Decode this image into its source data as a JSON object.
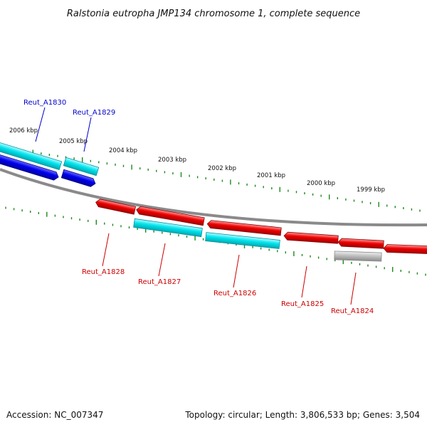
{
  "title": "Ralstonia eutropha JMP134 chromosome 1, complete sequence",
  "footer": {
    "accession": "Accession: NC_007347",
    "summary": "Topology: circular; Length: 3,806,533 bp; Genes: 3,504"
  },
  "colors": {
    "backbone": "#8a8a8a",
    "tick": "#1a8a1a",
    "label_forward": "#0000cc",
    "label_reverse": "#cc0000",
    "gene_cyan": "#00e5ee",
    "gene_blue": "#0000ee",
    "gene_red": "#ee0000",
    "gene_grey": "#b8b8b8"
  },
  "kbp_labels": [
    "2006 kbp",
    "2005 kbp",
    "2004 kbp",
    "2003 kbp",
    "2002 kbp",
    "2001 kbp",
    "2000 kbp",
    "1999 kbp"
  ],
  "genes": [
    {
      "name": "Reut_A1830",
      "strand": "forward"
    },
    {
      "name": "Reut_A1829",
      "strand": "forward"
    },
    {
      "name": "Reut_A1828",
      "strand": "reverse"
    },
    {
      "name": "Reut_A1827",
      "strand": "reverse"
    },
    {
      "name": "Reut_A1826",
      "strand": "reverse"
    },
    {
      "name": "Reut_A1825",
      "strand": "reverse"
    },
    {
      "name": "Reut_A1824",
      "strand": "reverse"
    }
  ]
}
